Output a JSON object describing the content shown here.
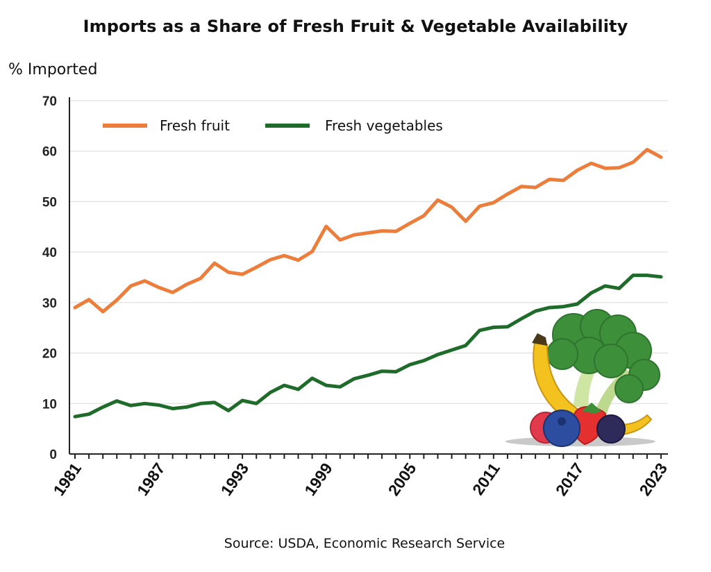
{
  "chart_data": {
    "type": "line",
    "title": "Imports as a Share of Fresh Fruit & Vegetable Availability",
    "ylabel": "% Imported",
    "xlabel": "",
    "source": "Source: USDA, Economic Research Service",
    "ylim": [
      0,
      70
    ],
    "xlim": [
      1981,
      2023
    ],
    "y_ticks": [
      0,
      10,
      20,
      30,
      40,
      50,
      60,
      70
    ],
    "x_ticks": [
      1981,
      1987,
      1993,
      1999,
      2005,
      2011,
      2017,
      2023
    ],
    "grid": "horizontal",
    "legend_position": "top-left",
    "x": [
      1981,
      1982,
      1983,
      1984,
      1985,
      1986,
      1987,
      1988,
      1989,
      1990,
      1991,
      1992,
      1993,
      1994,
      1995,
      1996,
      1997,
      1998,
      1999,
      2000,
      2001,
      2002,
      2003,
      2004,
      2005,
      2006,
      2007,
      2008,
      2009,
      2010,
      2011,
      2012,
      2013,
      2014,
      2015,
      2016,
      2017,
      2018,
      2019,
      2020,
      2021,
      2022,
      2023
    ],
    "series": [
      {
        "name": "Fresh fruit",
        "color": "#ED7D3A",
        "values": [
          29.0,
          30.6,
          28.2,
          30.5,
          33.3,
          34.3,
          33.0,
          32.0,
          33.6,
          34.8,
          37.8,
          36.0,
          35.6,
          37.0,
          38.5,
          39.3,
          38.4,
          40.1,
          45.1,
          42.4,
          43.4,
          43.8,
          44.2,
          44.1,
          45.7,
          47.2,
          50.3,
          48.9,
          46.1,
          49.1,
          49.8,
          51.5,
          53.0,
          52.8,
          54.4,
          54.2,
          56.2,
          57.6,
          56.6,
          56.7,
          57.8,
          60.3,
          58.8
        ]
      },
      {
        "name": "Fresh vegetables",
        "color": "#1E6B2A",
        "values": [
          7.4,
          7.9,
          9.3,
          10.5,
          9.6,
          10.0,
          9.7,
          9.0,
          9.3,
          10.0,
          10.2,
          8.6,
          10.6,
          10.0,
          12.2,
          13.6,
          12.8,
          15.0,
          13.6,
          13.3,
          14.9,
          15.6,
          16.4,
          16.3,
          17.7,
          18.5,
          19.7,
          20.6,
          21.5,
          24.5,
          25.1,
          25.2,
          26.8,
          28.3,
          29.0,
          29.2,
          29.7,
          31.9,
          33.3,
          32.8,
          35.4,
          35.4,
          35.1
        ]
      }
    ]
  },
  "decoration": {
    "illustration": "fruit-and-vegetables-illustration"
  }
}
